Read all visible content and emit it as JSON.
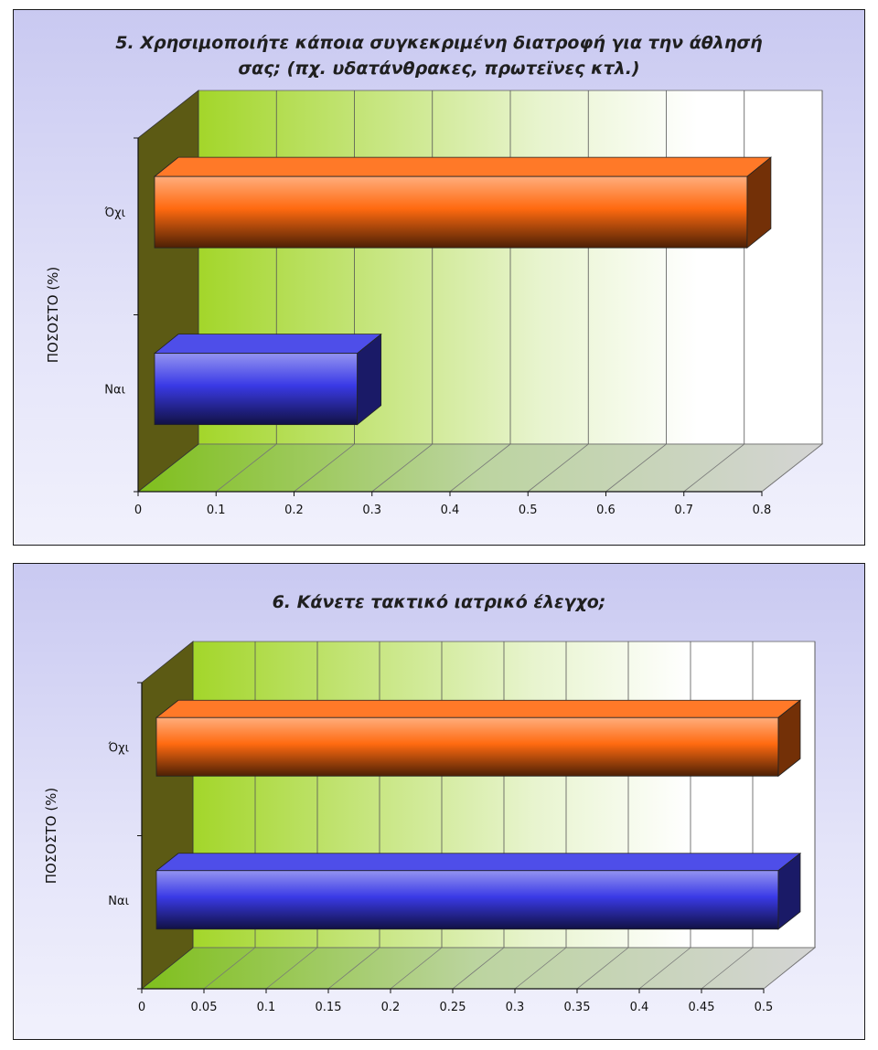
{
  "chart_data": [
    {
      "type": "bar",
      "orientation": "horizontal",
      "title": "5. Χρησιμοποιήτε κάποια συγκεκριμένη διατροφή για την άθλησή σας; (πχ. υδατάνθρακες, πρωτεϊνες κτλ.)",
      "title_lines": [
        "5. Χρησιμοποιήτε κάποια συγκεκριμένη διατροφή για την άθλησή",
        "σας; (πχ. υδατάνθρακες, πρωτεϊνες κτλ.)"
      ],
      "ylabel": "ΠΟΣΟΣΤΟ (%)",
      "categories": [
        "Όχι",
        "Ναι"
      ],
      "values": [
        0.76,
        0.26
      ],
      "xlim": [
        0,
        0.8
      ],
      "x_ticks": [
        "0",
        "0.1",
        "0.2",
        "0.3",
        "0.4",
        "0.5",
        "0.6",
        "0.7",
        "0.8"
      ],
      "colors": [
        "#ff6a10",
        "#3a3ae6"
      ],
      "style": "3d-bar"
    },
    {
      "type": "bar",
      "orientation": "horizontal",
      "title": "6. Κάνετε τακτικό ιατρικό έλεγχο;",
      "title_lines": [
        "6. Κάνετε τακτικό ιατρικό έλεγχο;"
      ],
      "ylabel": "ΠΟΣΟΣΤΟ (%)",
      "categories": [
        "Όχι",
        "Ναι"
      ],
      "values": [
        0.5,
        0.5
      ],
      "xlim": [
        0,
        0.5
      ],
      "x_ticks": [
        "0",
        "0.05",
        "0.1",
        "0.15",
        "0.2",
        "0.25",
        "0.3",
        "0.35",
        "0.4",
        "0.45",
        "0.5"
      ],
      "colors": [
        "#ff6a10",
        "#3a3ae6"
      ],
      "style": "3d-bar"
    }
  ]
}
